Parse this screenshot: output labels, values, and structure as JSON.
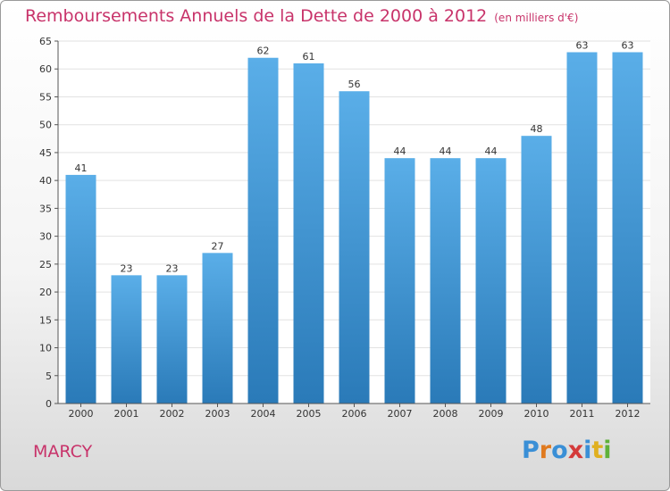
{
  "header": {
    "title": "Remboursements Annuels de la Dette de 2000 à 2012",
    "subtitle": "(en milliers d'€)"
  },
  "footer": {
    "location": "MARCY",
    "logo": {
      "letters": [
        "P",
        "r",
        "o",
        "x",
        "i",
        "t",
        "i"
      ],
      "colors": [
        "#3a8fd6",
        "#e07a1f",
        "#3a8fd6",
        "#d43a3a",
        "#3a8fd6",
        "#e0b020",
        "#5fb13a"
      ]
    }
  },
  "chart_data": {
    "type": "bar",
    "categories": [
      "2000",
      "2001",
      "2002",
      "2003",
      "2004",
      "2005",
      "2006",
      "2007",
      "2008",
      "2009",
      "2010",
      "2011",
      "2012"
    ],
    "values": [
      41,
      23,
      23,
      27,
      62,
      61,
      56,
      44,
      44,
      44,
      48,
      63,
      63
    ],
    "value_labels": [
      "41",
      "23",
      "23",
      "27",
      "62",
      "61",
      "56",
      "44",
      "44",
      "44",
      "48",
      "63",
      "63"
    ],
    "yticks": [
      0,
      5,
      10,
      15,
      20,
      25,
      30,
      35,
      40,
      45,
      50,
      55,
      60,
      65
    ],
    "ylim": [
      0,
      65
    ],
    "grid": true,
    "bar_color_top": "#5aaee8",
    "bar_color_bottom": "#2a7ab8"
  }
}
